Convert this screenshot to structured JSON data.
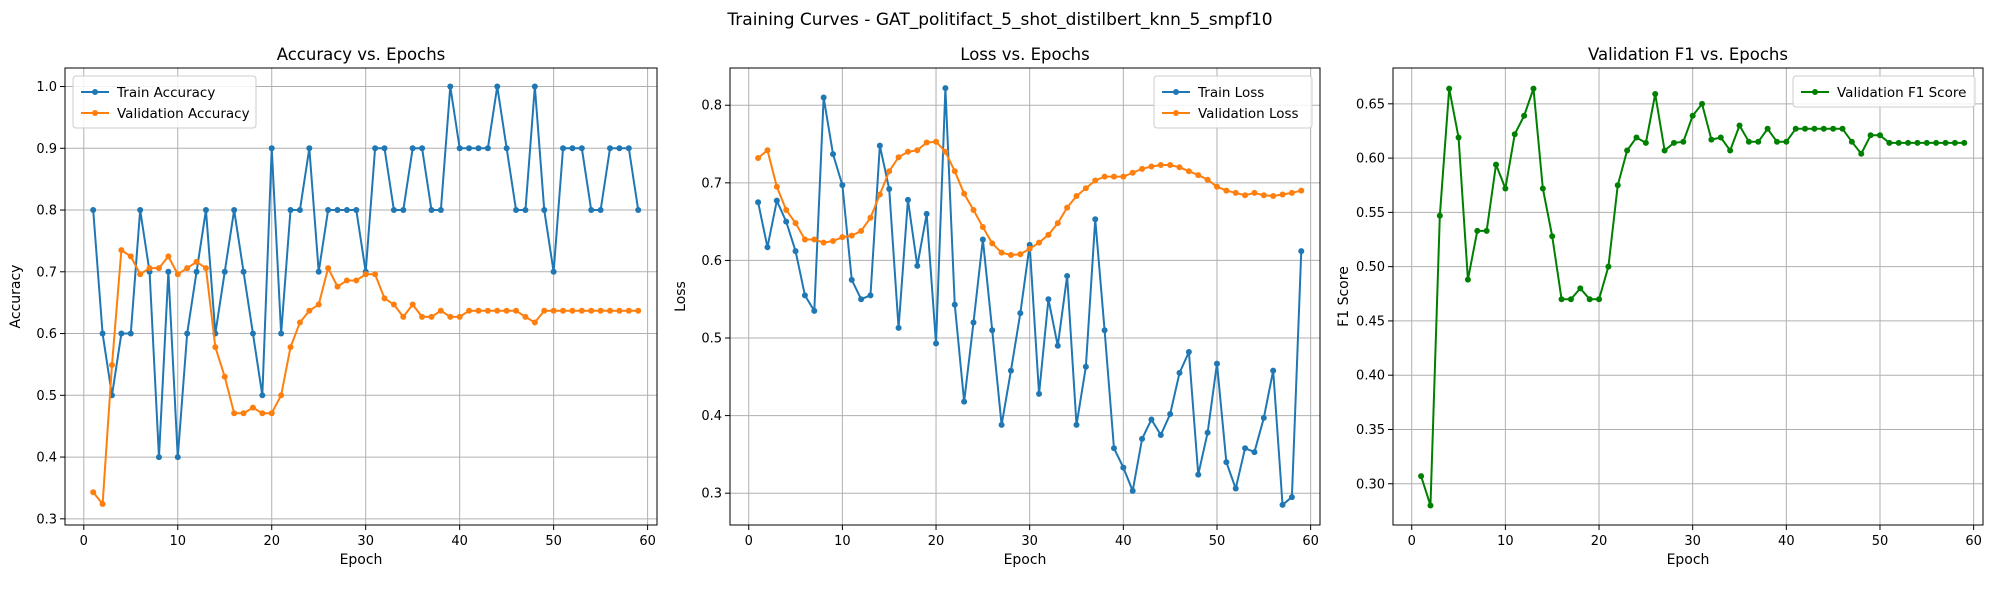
{
  "figure": {
    "suptitle": "Training Curves - GAT_politifact_5_shot_distilbert_knn_5_smpf10"
  },
  "chart_data": [
    {
      "type": "line",
      "title": "Accuracy vs. Epochs",
      "xlabel": "Epoch",
      "ylabel": "Accuracy",
      "xlim": [
        -2,
        61
      ],
      "ylim": [
        0.29,
        1.03
      ],
      "xticks": [
        0,
        10,
        20,
        30,
        40,
        50,
        60
      ],
      "xtick_labels": [
        "0",
        "10",
        "20",
        "30",
        "40",
        "50",
        "60"
      ],
      "yticks": [
        0.3,
        0.4,
        0.5,
        0.6,
        0.7,
        0.8,
        0.9,
        1.0
      ],
      "ytick_labels": [
        "0.3",
        "0.4",
        "0.5",
        "0.6",
        "0.7",
        "0.8",
        "0.9",
        "1.0"
      ],
      "grid": true,
      "legend_position": "upper-left",
      "x": [
        1,
        2,
        3,
        4,
        5,
        6,
        7,
        8,
        9,
        10,
        11,
        12,
        13,
        14,
        15,
        16,
        17,
        18,
        19,
        20,
        21,
        22,
        23,
        24,
        25,
        26,
        27,
        28,
        29,
        30,
        31,
        32,
        33,
        34,
        35,
        36,
        37,
        38,
        39,
        40,
        41,
        42,
        43,
        44,
        45,
        46,
        47,
        48,
        49,
        50,
        51,
        52,
        53,
        54,
        55,
        56,
        57,
        58,
        59
      ],
      "series": [
        {
          "name": "Train Accuracy",
          "color": "#1f77b4",
          "values": [
            0.8,
            0.6,
            0.5,
            0.6,
            0.6,
            0.8,
            0.7,
            0.4,
            0.7,
            0.4,
            0.6,
            0.7,
            0.8,
            0.6,
            0.7,
            0.8,
            0.7,
            0.6,
            0.5,
            0.9,
            0.6,
            0.8,
            0.8,
            0.9,
            0.7,
            0.8,
            0.8,
            0.8,
            0.8,
            0.7,
            0.9,
            0.9,
            0.8,
            0.8,
            0.9,
            0.9,
            0.8,
            0.8,
            1.0,
            0.9,
            0.9,
            0.9,
            0.9,
            1.0,
            0.9,
            0.8,
            0.8,
            1.0,
            0.8,
            0.7,
            0.9,
            0.9,
            0.9,
            0.8,
            0.8,
            0.9,
            0.9,
            0.9,
            0.8
          ]
        },
        {
          "name": "Validation Accuracy",
          "color": "#ff7f0e",
          "values": [
            0.343,
            0.324,
            0.549,
            0.735,
            0.725,
            0.696,
            0.706,
            0.706,
            0.725,
            0.696,
            0.706,
            0.716,
            0.706,
            0.578,
            0.53,
            0.471,
            0.471,
            0.48,
            0.471,
            0.471,
            0.5,
            0.578,
            0.618,
            0.637,
            0.647,
            0.706,
            0.676,
            0.686,
            0.686,
            0.696,
            0.696,
            0.657,
            0.647,
            0.627,
            0.647,
            0.627,
            0.627,
            0.637,
            0.627,
            0.627,
            0.637,
            0.637,
            0.637,
            0.637,
            0.637,
            0.637,
            0.627,
            0.618,
            0.637,
            0.637,
            0.637,
            0.637,
            0.637,
            0.637,
            0.637,
            0.637,
            0.637,
            0.637,
            0.637
          ]
        }
      ]
    },
    {
      "type": "line",
      "title": "Loss vs. Epochs",
      "xlabel": "Epoch",
      "ylabel": "Loss",
      "xlim": [
        -2,
        61
      ],
      "ylim": [
        0.259,
        0.848
      ],
      "xticks": [
        0,
        10,
        20,
        30,
        40,
        50,
        60
      ],
      "xtick_labels": [
        "0",
        "10",
        "20",
        "30",
        "40",
        "50",
        "60"
      ],
      "yticks": [
        0.3,
        0.4,
        0.5,
        0.6,
        0.7,
        0.8
      ],
      "ytick_labels": [
        "0.3",
        "0.4",
        "0.5",
        "0.6",
        "0.7",
        "0.8"
      ],
      "grid": true,
      "legend_position": "upper-right",
      "x": [
        1,
        2,
        3,
        4,
        5,
        6,
        7,
        8,
        9,
        10,
        11,
        12,
        13,
        14,
        15,
        16,
        17,
        18,
        19,
        20,
        21,
        22,
        23,
        24,
        25,
        26,
        27,
        28,
        29,
        30,
        31,
        32,
        33,
        34,
        35,
        36,
        37,
        38,
        39,
        40,
        41,
        42,
        43,
        44,
        45,
        46,
        47,
        48,
        49,
        50,
        51,
        52,
        53,
        54,
        55,
        56,
        57,
        58,
        59
      ],
      "series": [
        {
          "name": "Train Loss",
          "color": "#1f77b4",
          "values": [
            0.675,
            0.617,
            0.677,
            0.65,
            0.612,
            0.555,
            0.535,
            0.81,
            0.737,
            0.697,
            0.575,
            0.55,
            0.555,
            0.748,
            0.692,
            0.513,
            0.678,
            0.593,
            0.66,
            0.493,
            0.822,
            0.543,
            0.418,
            0.52,
            0.627,
            0.51,
            0.388,
            0.458,
            0.532,
            0.62,
            0.428,
            0.55,
            0.49,
            0.58,
            0.388,
            0.463,
            0.653,
            0.51,
            0.358,
            0.333,
            0.303,
            0.37,
            0.395,
            0.375,
            0.402,
            0.455,
            0.482,
            0.324,
            0.378,
            0.467,
            0.34,
            0.306,
            0.358,
            0.353,
            0.397,
            0.458,
            0.285,
            0.295,
            0.612
          ]
        },
        {
          "name": "Validation Loss",
          "color": "#ff7f0e",
          "values": [
            0.732,
            0.742,
            0.695,
            0.665,
            0.648,
            0.627,
            0.627,
            0.623,
            0.625,
            0.63,
            0.632,
            0.638,
            0.655,
            0.685,
            0.715,
            0.733,
            0.74,
            0.742,
            0.752,
            0.753,
            0.74,
            0.715,
            0.686,
            0.665,
            0.643,
            0.622,
            0.61,
            0.607,
            0.608,
            0.615,
            0.623,
            0.633,
            0.648,
            0.668,
            0.683,
            0.693,
            0.703,
            0.708,
            0.708,
            0.708,
            0.713,
            0.718,
            0.721,
            0.723,
            0.723,
            0.72,
            0.715,
            0.71,
            0.704,
            0.695,
            0.69,
            0.687,
            0.684,
            0.687,
            0.684,
            0.683,
            0.685,
            0.687,
            0.69
          ]
        }
      ]
    },
    {
      "type": "line",
      "title": "Validation F1 vs. Epochs",
      "xlabel": "Epoch",
      "ylabel": "F1 Score",
      "xlim": [
        -2,
        61
      ],
      "ylim": [
        0.262,
        0.683
      ],
      "xticks": [
        0,
        10,
        20,
        30,
        40,
        50,
        60
      ],
      "xtick_labels": [
        "0",
        "10",
        "20",
        "30",
        "40",
        "50",
        "60"
      ],
      "yticks": [
        0.3,
        0.35,
        0.4,
        0.45,
        0.5,
        0.55,
        0.6,
        0.65
      ],
      "ytick_labels": [
        "0.30",
        "0.35",
        "0.40",
        "0.45",
        "0.50",
        "0.55",
        "0.60",
        "0.65"
      ],
      "grid": true,
      "legend_position": "upper-right",
      "x": [
        1,
        2,
        3,
        4,
        5,
        6,
        7,
        8,
        9,
        10,
        11,
        12,
        13,
        14,
        15,
        16,
        17,
        18,
        19,
        20,
        21,
        22,
        23,
        24,
        25,
        26,
        27,
        28,
        29,
        30,
        31,
        32,
        33,
        34,
        35,
        36,
        37,
        38,
        39,
        40,
        41,
        42,
        43,
        44,
        45,
        46,
        47,
        48,
        49,
        50,
        51,
        52,
        53,
        54,
        55,
        56,
        57,
        58,
        59
      ],
      "series": [
        {
          "name": "Validation F1 Score",
          "color": "#008000",
          "values": [
            0.307,
            0.28,
            0.547,
            0.664,
            0.619,
            0.488,
            0.533,
            0.533,
            0.594,
            0.572,
            0.622,
            0.639,
            0.664,
            0.572,
            0.528,
            0.47,
            0.47,
            0.48,
            0.47,
            0.47,
            0.5,
            0.575,
            0.607,
            0.619,
            0.614,
            0.659,
            0.607,
            0.614,
            0.615,
            0.639,
            0.65,
            0.617,
            0.619,
            0.607,
            0.63,
            0.615,
            0.615,
            0.627,
            0.615,
            0.615,
            0.627,
            0.627,
            0.627,
            0.627,
            0.627,
            0.627,
            0.615,
            0.604,
            0.621,
            0.621,
            0.614,
            0.614,
            0.614,
            0.614,
            0.614,
            0.614,
            0.614,
            0.614,
            0.614
          ]
        }
      ]
    }
  ]
}
